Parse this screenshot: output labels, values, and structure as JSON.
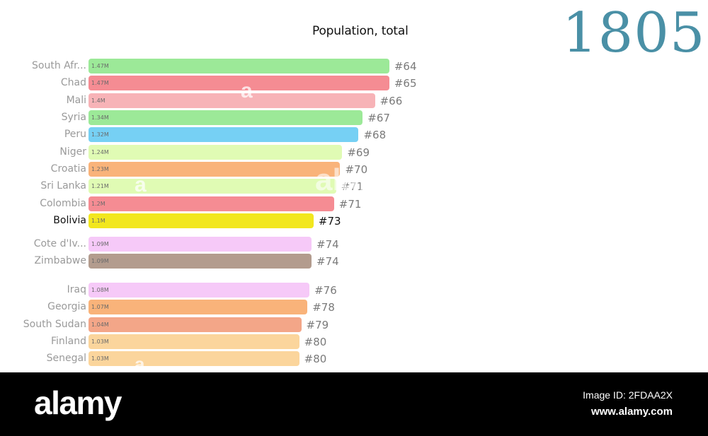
{
  "chart_data": {
    "type": "bar",
    "title": "Population, total",
    "year": "1805",
    "categories": [
      "South Afr...",
      "Chad",
      "Mali",
      "Syria",
      "Peru",
      "Niger",
      "Croatia",
      "Sri Lanka",
      "Colombia",
      "Bolivia",
      "Cote d'Iv...",
      "Zimbabwe",
      "Iraq",
      "Georgia",
      "South Sudan",
      "Finland",
      "Senegal"
    ],
    "values": [
      1.47,
      1.47,
      1.4,
      1.34,
      1.32,
      1.24,
      1.23,
      1.21,
      1.2,
      1.1,
      1.09,
      1.09,
      1.08,
      1.07,
      1.04,
      1.03,
      1.03
    ],
    "value_labels": [
      "1.47M",
      "1.47M",
      "1.4M",
      "1.34M",
      "1.32M",
      "1.24M",
      "1.23M",
      "1.21M",
      "1.2M",
      "1.1M",
      "1.09M",
      "1.09M",
      "1.08M",
      "1.07M",
      "1.04M",
      "1.03M",
      "1.03M"
    ],
    "ranks": [
      "#64",
      "#65",
      "#66",
      "#67",
      "#68",
      "#69",
      "#70",
      "#71",
      "#71",
      "#73",
      "#74",
      "#74",
      "#76",
      "#78",
      "#79",
      "#80",
      "#80"
    ],
    "colors": [
      "#8ee68a",
      "#f47c84",
      "#f6a8ad",
      "#8ee68a",
      "#63c9f3",
      "#dcfbaa",
      "#f8a968",
      "#dcfbaa",
      "#f47c84",
      "#f0e400",
      "#f5c2f7",
      "#a88e7e",
      "#f5c2f7",
      "#f8a968",
      "#f19a78",
      "#fbcf8e",
      "#fbcf8e"
    ],
    "highlight": "Bolivia",
    "units": "M"
  },
  "watermark": {
    "logo": "alamy",
    "image_id": "Image ID: 2FDAA2X",
    "site": "www.alamy.com"
  }
}
